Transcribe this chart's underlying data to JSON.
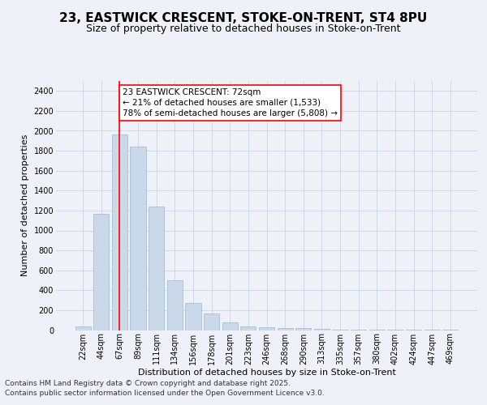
{
  "title_line1": "23, EASTWICK CRESCENT, STOKE-ON-TRENT, ST4 8PU",
  "title_line2": "Size of property relative to detached houses in Stoke-on-Trent",
  "xlabel": "Distribution of detached houses by size in Stoke-on-Trent",
  "ylabel": "Number of detached properties",
  "categories": [
    "22sqm",
    "44sqm",
    "67sqm",
    "89sqm",
    "111sqm",
    "134sqm",
    "156sqm",
    "178sqm",
    "201sqm",
    "223sqm",
    "246sqm",
    "268sqm",
    "290sqm",
    "313sqm",
    "335sqm",
    "357sqm",
    "380sqm",
    "402sqm",
    "424sqm",
    "447sqm",
    "469sqm"
  ],
  "values": [
    40,
    1170,
    1960,
    1840,
    1240,
    500,
    270,
    170,
    75,
    40,
    25,
    20,
    20,
    15,
    5,
    5,
    3,
    3,
    2,
    1,
    1
  ],
  "bar_color": "#c9d9ea",
  "bar_edgecolor": "#a0b8d0",
  "grid_color": "#d0d8e8",
  "background_color": "#eef2f8",
  "vline_x_index": 2,
  "vline_color": "red",
  "annotation_text": "23 EASTWICK CRESCENT: 72sqm\n← 21% of detached houses are smaller (1,533)\n78% of semi-detached houses are larger (5,808) →",
  "annotation_box_color": "white",
  "annotation_box_edgecolor": "red",
  "ylim": [
    0,
    2500
  ],
  "yticks": [
    0,
    200,
    400,
    600,
    800,
    1000,
    1200,
    1400,
    1600,
    1800,
    2000,
    2200,
    2400
  ],
  "footer_line1": "Contains HM Land Registry data © Crown copyright and database right 2025.",
  "footer_line2": "Contains public sector information licensed under the Open Government Licence v3.0.",
  "title_fontsize": 11,
  "subtitle_fontsize": 9,
  "axis_label_fontsize": 8,
  "tick_fontsize": 7,
  "annotation_fontsize": 7.5,
  "footer_fontsize": 6.5
}
